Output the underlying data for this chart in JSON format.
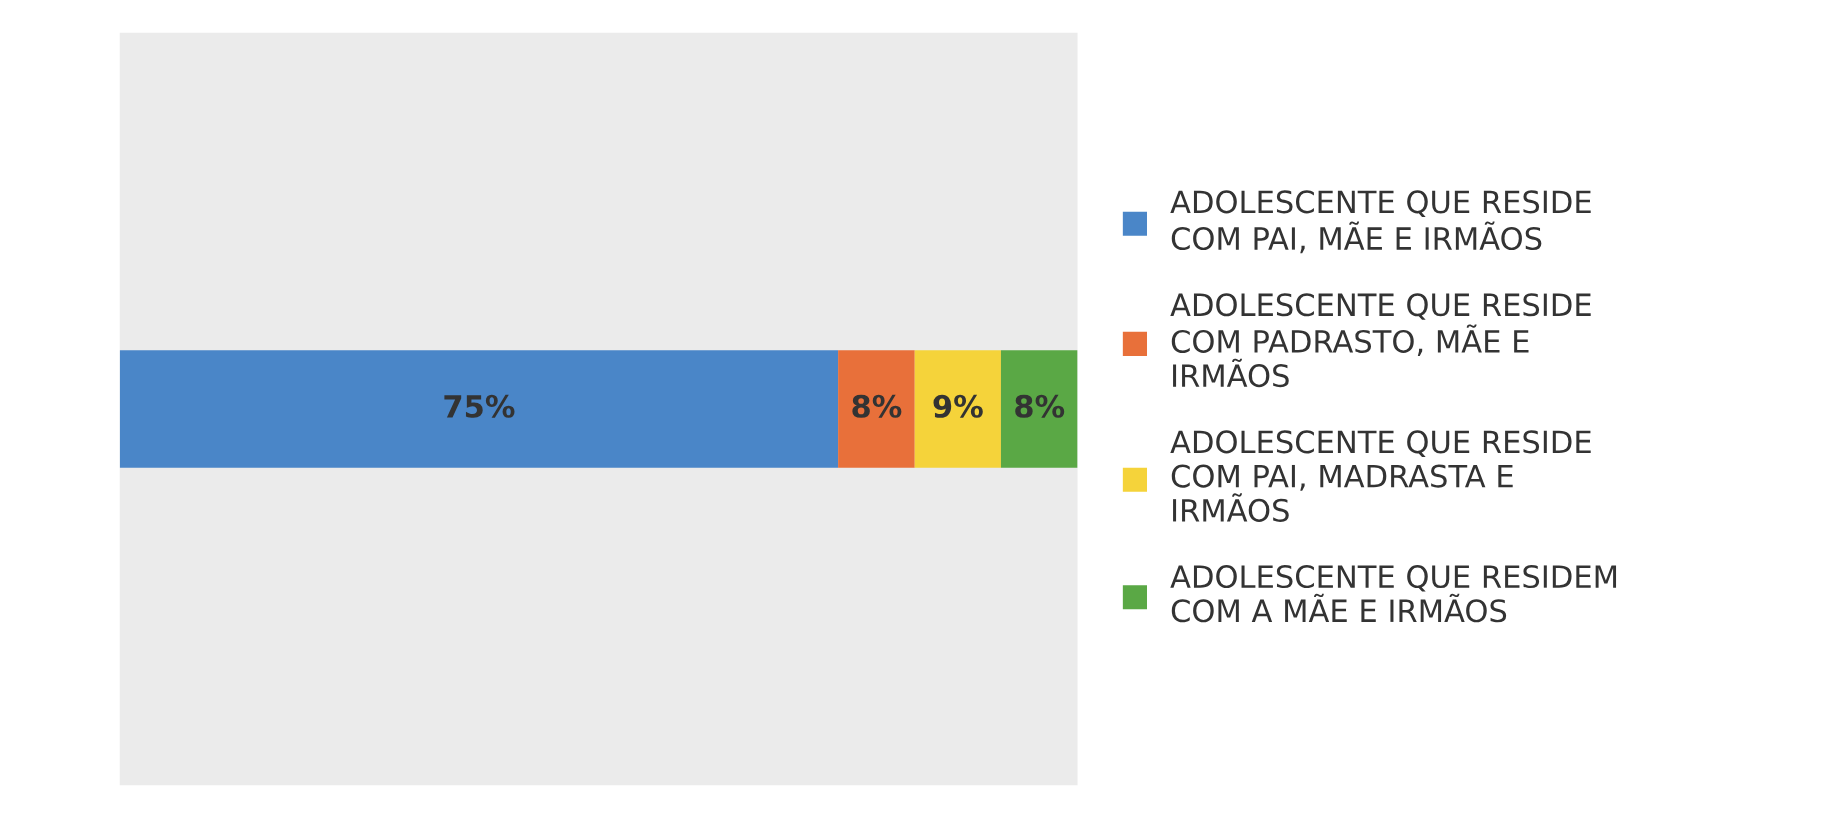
{
  "chart_data": {
    "type": "bar",
    "orientation": "horizontal",
    "stacked": true,
    "categories": [
      null
    ],
    "series": [
      {
        "name": "ADOLESCENTE QUE RESIDE COM PAI, MÃE E IRMÃOS",
        "color": "#4a86c8",
        "values": [
          75
        ],
        "value_labels": [
          "75%"
        ]
      },
      {
        "name": "ADOLESCENTE QUE RESIDE COM PADRASTO, MÃE E IRMÃOS",
        "color": "#e8703a",
        "values": [
          8
        ],
        "value_labels": [
          "8%"
        ]
      },
      {
        "name": "ADOLESCENTE QUE RESIDE COM PAI, MADRASTA E IRMÃOS",
        "color": "#f5d33a",
        "values": [
          9
        ],
        "value_labels": [
          "9%"
        ]
      },
      {
        "name": "ADOLESCENTE QUE RESIDEM COM A MÃE E IRMÃOS",
        "color": "#5aa845",
        "values": [
          8
        ],
        "value_labels": [
          "8%"
        ]
      }
    ],
    "legend": "right"
  }
}
